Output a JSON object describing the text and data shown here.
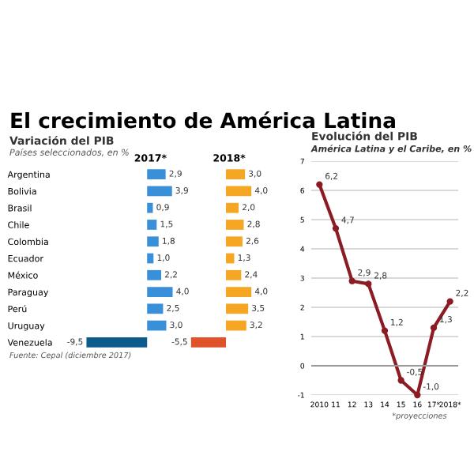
{
  "chart_data": [
    {
      "type": "bar",
      "orientation": "horizontal",
      "title": "El crecimiento de América Latina",
      "subtitle": "Variación del PIB",
      "annotations": [
        "Países seleccionados, en %",
        "Fuente: Cepal (diciembre 2017)"
      ],
      "categories": [
        "Argentina",
        "Bolivia",
        "Brasil",
        "Chile",
        "Colombia",
        "Ecuador",
        "México",
        "Paraguay",
        "Perú",
        "Uruguay",
        "Venezuela"
      ],
      "tick_labels": "y",
      "series": [
        {
          "name": "2017*",
          "color": "#3a8fd9",
          "colors": [
            "#3a8fd9",
            "#3a8fd9",
            "#3a8fd9",
            "#3a8fd9",
            "#3a8fd9",
            "#3a8fd9",
            "#3a8fd9",
            "#3a8fd9",
            "#3a8fd9",
            "#3a8fd9",
            "#0d5a8c"
          ],
          "values": [
            2.9,
            3.9,
            0.9,
            1.5,
            1.8,
            1.0,
            2.2,
            4.0,
            2.5,
            3.0,
            -9.5
          ],
          "value_labels": [
            "2,9",
            "3,9",
            "0,9",
            "1,5",
            "1,8",
            "1,0",
            "2,2",
            "4,0",
            "2,5",
            "3,0",
            "-9,5"
          ]
        }
      ]
    },
    {
      "type": "bar",
      "orientation": "horizontal",
      "categories": [
        null,
        null,
        null,
        null,
        null,
        null,
        null,
        null,
        null,
        null,
        null
      ],
      "tick_labels": false,
      "series": [
        {
          "name": "2018*",
          "color": "#f5a623",
          "colors": [
            "#f5a623",
            "#f5a623",
            "#f5a623",
            "#f5a623",
            "#f5a623",
            "#f5a623",
            "#f5a623",
            "#f5a623",
            "#f5a623",
            "#f5a623",
            "#e0532a"
          ],
          "values": [
            3.0,
            4.0,
            2.0,
            2.8,
            2.6,
            1.3,
            2.4,
            4.0,
            3.5,
            3.2,
            -5.5
          ],
          "value_labels": [
            "3,0",
            "4,0",
            "2,0",
            "2,8",
            "2,6",
            "1,3",
            "2,4",
            "4,0",
            "3,5",
            "3,2",
            "-5,5"
          ]
        }
      ]
    },
    {
      "type": "line",
      "title": "Evolución del PIB",
      "subtitle": "América Latina y el Caribe, en %",
      "annotations": [
        "*proyecciones"
      ],
      "categories": [
        "2010",
        "11",
        "12",
        "13",
        "14",
        "15",
        "16",
        "17*",
        "2018*"
      ],
      "ylim": [
        -1,
        7
      ],
      "yticks": [
        -1,
        0,
        1,
        2,
        3,
        4,
        5,
        6,
        7
      ],
      "grid": "y",
      "marker": "circle",
      "line_style": "solid",
      "series": [
        {
          "color": "#8b1c24",
          "values": [
            6.2,
            4.7,
            2.9,
            2.8,
            1.2,
            -0.5,
            -1.0,
            1.3,
            2.2
          ],
          "value_labels": [
            "6,2",
            "4,7",
            "2,9",
            "2,8",
            "1,2",
            "-0,5",
            "-1,0",
            "1,3",
            "2,2"
          ]
        }
      ]
    }
  ]
}
